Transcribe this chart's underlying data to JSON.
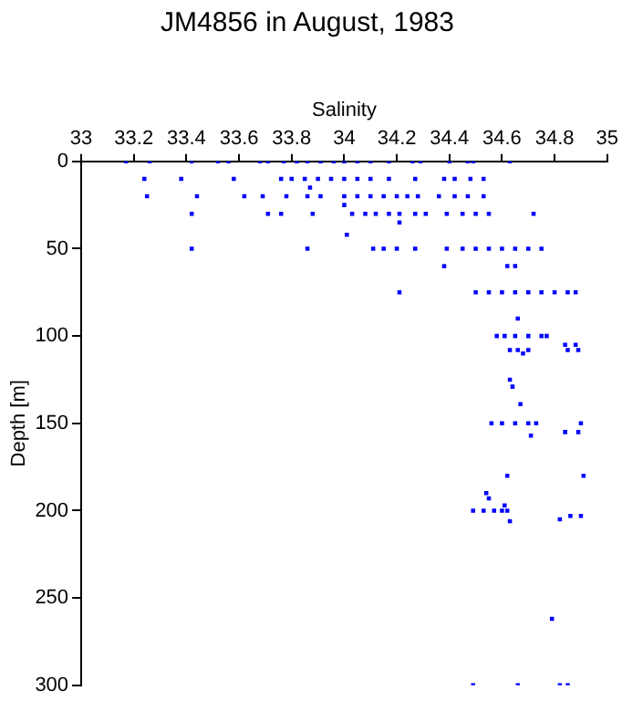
{
  "chart_data": {
    "type": "scatter",
    "title": "JM4856 in August, 1983",
    "xlabel": "Salinity",
    "ylabel": "Depth [m]",
    "xlim": [
      33,
      35
    ],
    "xticks": [
      33,
      33.2,
      33.4,
      33.6,
      33.8,
      34,
      34.2,
      34.4,
      34.6,
      34.8,
      35
    ],
    "ylim": [
      300,
      0
    ],
    "yticks": [
      0,
      50,
      100,
      150,
      200,
      250,
      300
    ],
    "grid": false,
    "legend": false,
    "marker": "square",
    "series": [
      {
        "color": "#0000ff",
        "x": [
          33.17,
          33.26,
          33.42,
          33.52,
          33.56,
          33.68,
          33.71,
          33.77,
          33.82,
          33.86,
          33.91,
          33.96,
          34.0,
          34.05,
          34.1,
          34.17,
          34.26,
          34.29,
          34.4,
          34.47,
          34.49,
          34.63,
          33.24,
          33.38,
          33.58,
          33.76,
          33.8,
          33.85,
          33.9,
          33.95,
          34.0,
          34.05,
          34.1,
          34.17,
          34.27,
          34.38,
          34.42,
          34.48,
          34.53,
          33.87,
          33.25,
          33.44,
          33.62,
          33.69,
          33.78,
          33.86,
          33.91,
          34.0,
          34.05,
          34.1,
          34.15,
          34.2,
          34.24,
          34.28,
          34.36,
          34.42,
          34.47,
          34.53,
          34.0,
          33.42,
          33.71,
          33.76,
          33.88,
          34.03,
          34.08,
          34.12,
          34.17,
          34.21,
          34.27,
          34.31,
          34.39,
          34.45,
          34.5,
          34.55,
          34.72,
          34.21,
          34.01,
          33.42,
          33.86,
          34.11,
          34.15,
          34.2,
          34.27,
          34.39,
          34.45,
          34.5,
          34.55,
          34.6,
          34.65,
          34.7,
          34.75,
          34.38,
          34.62,
          34.65,
          34.21,
          34.5,
          34.55,
          34.6,
          34.65,
          34.7,
          34.75,
          34.8,
          34.85,
          34.88,
          34.66,
          34.58,
          34.61,
          34.65,
          34.7,
          34.75,
          34.77,
          34.84,
          34.88,
          34.63,
          34.66,
          34.7,
          34.85,
          34.89,
          34.68,
          34.63,
          34.64,
          34.67,
          34.56,
          34.6,
          34.65,
          34.7,
          34.73,
          34.9,
          34.84,
          34.89,
          34.71,
          34.62,
          34.91,
          34.54,
          34.55,
          34.61,
          34.49,
          34.53,
          34.57,
          34.6,
          34.62,
          34.86,
          34.9,
          34.82,
          34.63,
          34.79,
          34.49,
          34.66,
          34.82,
          34.85
        ],
        "values": [
          0,
          0,
          0,
          0,
          0,
          0,
          0,
          0,
          0,
          0,
          0,
          0,
          0,
          0,
          0,
          0,
          0,
          0,
          0,
          0,
          0,
          0,
          10,
          10,
          10,
          10,
          10,
          10,
          10,
          10,
          10,
          10,
          10,
          10,
          10,
          10,
          10,
          10,
          10,
          15,
          20,
          20,
          20,
          20,
          20,
          20,
          20,
          20,
          20,
          20,
          20,
          20,
          20,
          20,
          20,
          20,
          20,
          20,
          25,
          30,
          30,
          30,
          30,
          30,
          30,
          30,
          30,
          30,
          30,
          30,
          30,
          30,
          30,
          30,
          30,
          35,
          42,
          50,
          50,
          50,
          50,
          50,
          50,
          50,
          50,
          50,
          50,
          50,
          50,
          50,
          50,
          60,
          60,
          60,
          75,
          75,
          75,
          75,
          75,
          75,
          75,
          75,
          75,
          75,
          90,
          100,
          100,
          100,
          100,
          100,
          100,
          105,
          105,
          108,
          108,
          108,
          108,
          108,
          110,
          125,
          129,
          139,
          150,
          150,
          150,
          150,
          150,
          150,
          155,
          155,
          157,
          180,
          180,
          190,
          193,
          197,
          200,
          200,
          200,
          200,
          200,
          203,
          203,
          205,
          206,
          262,
          300,
          300,
          300,
          300
        ]
      }
    ]
  }
}
